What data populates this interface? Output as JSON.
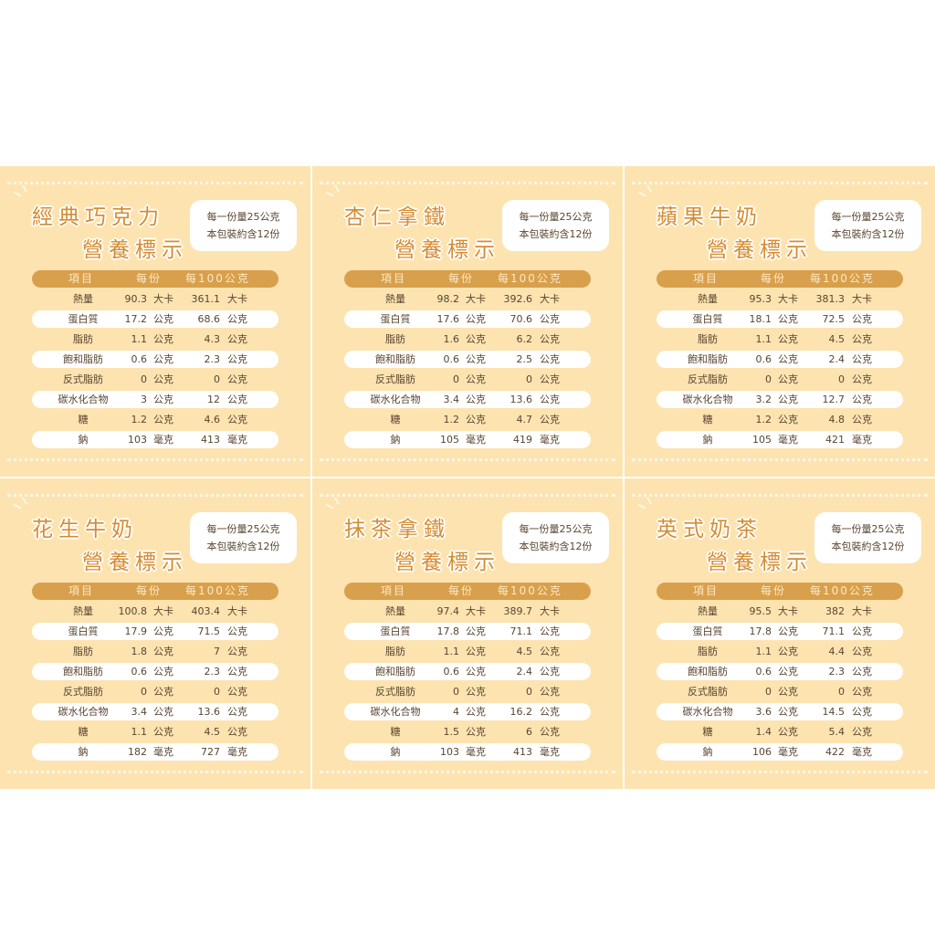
{
  "colors": {
    "background": "#fde3b0",
    "header_bar": "#d8a04c",
    "title": "#d58c31",
    "row_highlight": "#ffffff"
  },
  "labels": {
    "subtitle": "營養標示",
    "serving": "每一份量25公克",
    "servings_per_pack": "本包裝約含12份",
    "col_item": "項目",
    "col_per_serving": "每份",
    "col_per_100g": "每100公克"
  },
  "nutrients": [
    "熱量",
    "蛋白質",
    "脂肪",
    "飽和脂肪",
    "反式脂肪",
    "碳水化合物",
    "糖",
    "鈉"
  ],
  "units": [
    "大卡",
    "公克",
    "公克",
    "公克",
    "公克",
    "公克",
    "公克",
    "毫克"
  ],
  "products": [
    {
      "name": "經典巧克力",
      "per_serving": [
        "90.3",
        "17.2",
        "1.1",
        "0.6",
        "0",
        "3",
        "1.2",
        "103"
      ],
      "per_100g": [
        "361.1",
        "68.6",
        "4.3",
        "2.3",
        "0",
        "12",
        "4.6",
        "413"
      ]
    },
    {
      "name": "杏仁拿鐵",
      "per_serving": [
        "98.2",
        "17.6",
        "1.6",
        "0.6",
        "0",
        "3.4",
        "1.2",
        "105"
      ],
      "per_100g": [
        "392.6",
        "70.6",
        "6.2",
        "2.5",
        "0",
        "13.6",
        "4.7",
        "419"
      ]
    },
    {
      "name": "蘋果牛奶",
      "per_serving": [
        "95.3",
        "18.1",
        "1.1",
        "0.6",
        "0",
        "3.2",
        "1.2",
        "105"
      ],
      "per_100g": [
        "381.3",
        "72.5",
        "4.5",
        "2.4",
        "0",
        "12.7",
        "4.8",
        "421"
      ]
    },
    {
      "name": "花生牛奶",
      "per_serving": [
        "100.8",
        "17.9",
        "1.8",
        "0.6",
        "0",
        "3.4",
        "1.1",
        "182"
      ],
      "per_100g": [
        "403.4",
        "71.5",
        "7",
        "2.3",
        "0",
        "13.6",
        "4.5",
        "727"
      ]
    },
    {
      "name": "抹茶拿鐵",
      "per_serving": [
        "97.4",
        "17.8",
        "1.1",
        "0.6",
        "0",
        "4",
        "1.5",
        "103"
      ],
      "per_100g": [
        "389.7",
        "71.1",
        "4.5",
        "2.4",
        "0",
        "16.2",
        "6",
        "413"
      ]
    },
    {
      "name": "英式奶茶",
      "per_serving": [
        "95.5",
        "17.8",
        "1.1",
        "0.6",
        "0",
        "3.6",
        "1.4",
        "106"
      ],
      "per_100g": [
        "382",
        "71.1",
        "4.4",
        "2.3",
        "0",
        "14.5",
        "5.4",
        "422"
      ]
    }
  ]
}
